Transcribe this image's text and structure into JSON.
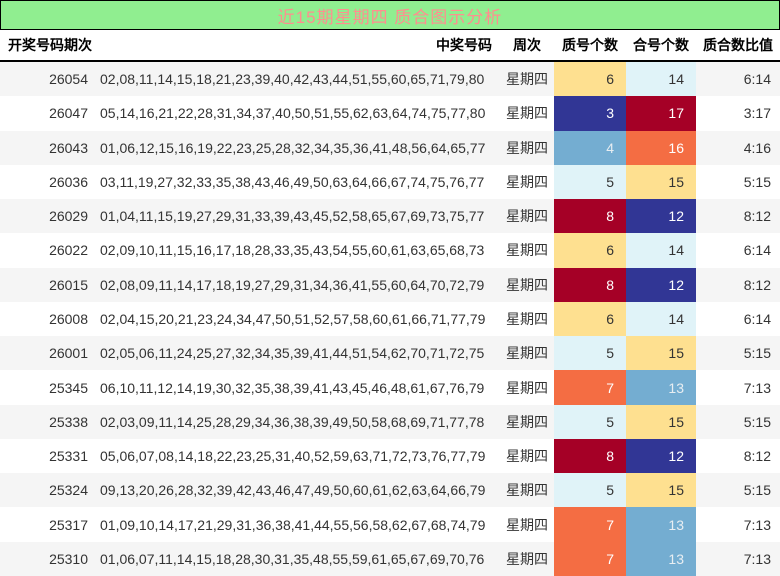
{
  "title": "近15期星期四 质合图示分析",
  "colors": {
    "title_bg": "#90ee90",
    "title_fg": "#ff8f8f",
    "header_fg": "#000000",
    "body_fg": "#333333",
    "row_bg": "#ffffff",
    "row_alt_bg": "#f5f5f5",
    "palette": {
      "3": {
        "bg": "#313695",
        "fg": "#ffffff"
      },
      "4": {
        "bg": "#74add1",
        "fg": "#e8eef2"
      },
      "5": {
        "bg": "#e0f3f8",
        "fg": "#333333"
      },
      "6": {
        "bg": "#fee090",
        "fg": "#333333"
      },
      "7": {
        "bg": "#f46d43",
        "fg": "#ffffff"
      },
      "8": {
        "bg": "#a50026",
        "fg": "#ffffff"
      },
      "12": {
        "bg": "#313695",
        "fg": "#ffffff"
      },
      "13": {
        "bg": "#74add1",
        "fg": "#e8eef2"
      },
      "14": {
        "bg": "#e0f3f8",
        "fg": "#333333"
      },
      "15": {
        "bg": "#fee090",
        "fg": "#333333"
      },
      "16": {
        "bg": "#f46d43",
        "fg": "#ffffff"
      },
      "17": {
        "bg": "#a50026",
        "fg": "#ffffff"
      }
    }
  },
  "table": {
    "headers": {
      "period": "开奖号码期次",
      "numbers": "中奖号码",
      "week": "周次",
      "prime": "质号个数",
      "composite": "合号个数",
      "ratio": "质合数比值"
    },
    "rows": [
      {
        "period": "26054",
        "numbers": "02,08,11,14,15,18,21,23,39,40,42,43,44,51,55,60,65,71,79,80",
        "week": "星期四",
        "prime": 6,
        "composite": 14,
        "ratio": "6:14"
      },
      {
        "period": "26047",
        "numbers": "05,14,16,21,22,28,31,34,37,40,50,51,55,62,63,64,74,75,77,80",
        "week": "星期四",
        "prime": 3,
        "composite": 17,
        "ratio": "3:17"
      },
      {
        "period": "26043",
        "numbers": "01,06,12,15,16,19,22,23,25,28,32,34,35,36,41,48,56,64,65,77",
        "week": "星期四",
        "prime": 4,
        "composite": 16,
        "ratio": "4:16"
      },
      {
        "period": "26036",
        "numbers": "03,11,19,27,32,33,35,38,43,46,49,50,63,64,66,67,74,75,76,77",
        "week": "星期四",
        "prime": 5,
        "composite": 15,
        "ratio": "5:15"
      },
      {
        "period": "26029",
        "numbers": "01,04,11,15,19,27,29,31,33,39,43,45,52,58,65,67,69,73,75,77",
        "week": "星期四",
        "prime": 8,
        "composite": 12,
        "ratio": "8:12"
      },
      {
        "period": "26022",
        "numbers": "02,09,10,11,15,16,17,18,28,33,35,43,54,55,60,61,63,65,68,73",
        "week": "星期四",
        "prime": 6,
        "composite": 14,
        "ratio": "6:14"
      },
      {
        "period": "26015",
        "numbers": "02,08,09,11,14,17,18,19,27,29,31,34,36,41,55,60,64,70,72,79",
        "week": "星期四",
        "prime": 8,
        "composite": 12,
        "ratio": "8:12"
      },
      {
        "period": "26008",
        "numbers": "02,04,15,20,21,23,24,34,47,50,51,52,57,58,60,61,66,71,77,79",
        "week": "星期四",
        "prime": 6,
        "composite": 14,
        "ratio": "6:14"
      },
      {
        "period": "26001",
        "numbers": "02,05,06,11,24,25,27,32,34,35,39,41,44,51,54,62,70,71,72,75",
        "week": "星期四",
        "prime": 5,
        "composite": 15,
        "ratio": "5:15"
      },
      {
        "period": "25345",
        "numbers": "06,10,11,12,14,19,30,32,35,38,39,41,43,45,46,48,61,67,76,79",
        "week": "星期四",
        "prime": 7,
        "composite": 13,
        "ratio": "7:13"
      },
      {
        "period": "25338",
        "numbers": "02,03,09,11,14,25,28,29,34,36,38,39,49,50,58,68,69,71,77,78",
        "week": "星期四",
        "prime": 5,
        "composite": 15,
        "ratio": "5:15"
      },
      {
        "period": "25331",
        "numbers": "05,06,07,08,14,18,22,23,25,31,40,52,59,63,71,72,73,76,77,79",
        "week": "星期四",
        "prime": 8,
        "composite": 12,
        "ratio": "8:12"
      },
      {
        "period": "25324",
        "numbers": "09,13,20,26,28,32,39,42,43,46,47,49,50,60,61,62,63,64,66,79",
        "week": "星期四",
        "prime": 5,
        "composite": 15,
        "ratio": "5:15"
      },
      {
        "period": "25317",
        "numbers": "01,09,10,14,17,21,29,31,36,38,41,44,55,56,58,62,67,68,74,79",
        "week": "星期四",
        "prime": 7,
        "composite": 13,
        "ratio": "7:13"
      },
      {
        "period": "25310",
        "numbers": "01,06,07,11,14,15,18,28,30,31,35,48,55,59,61,65,67,69,70,76",
        "week": "星期四",
        "prime": 7,
        "composite": 13,
        "ratio": "7:13"
      }
    ]
  }
}
